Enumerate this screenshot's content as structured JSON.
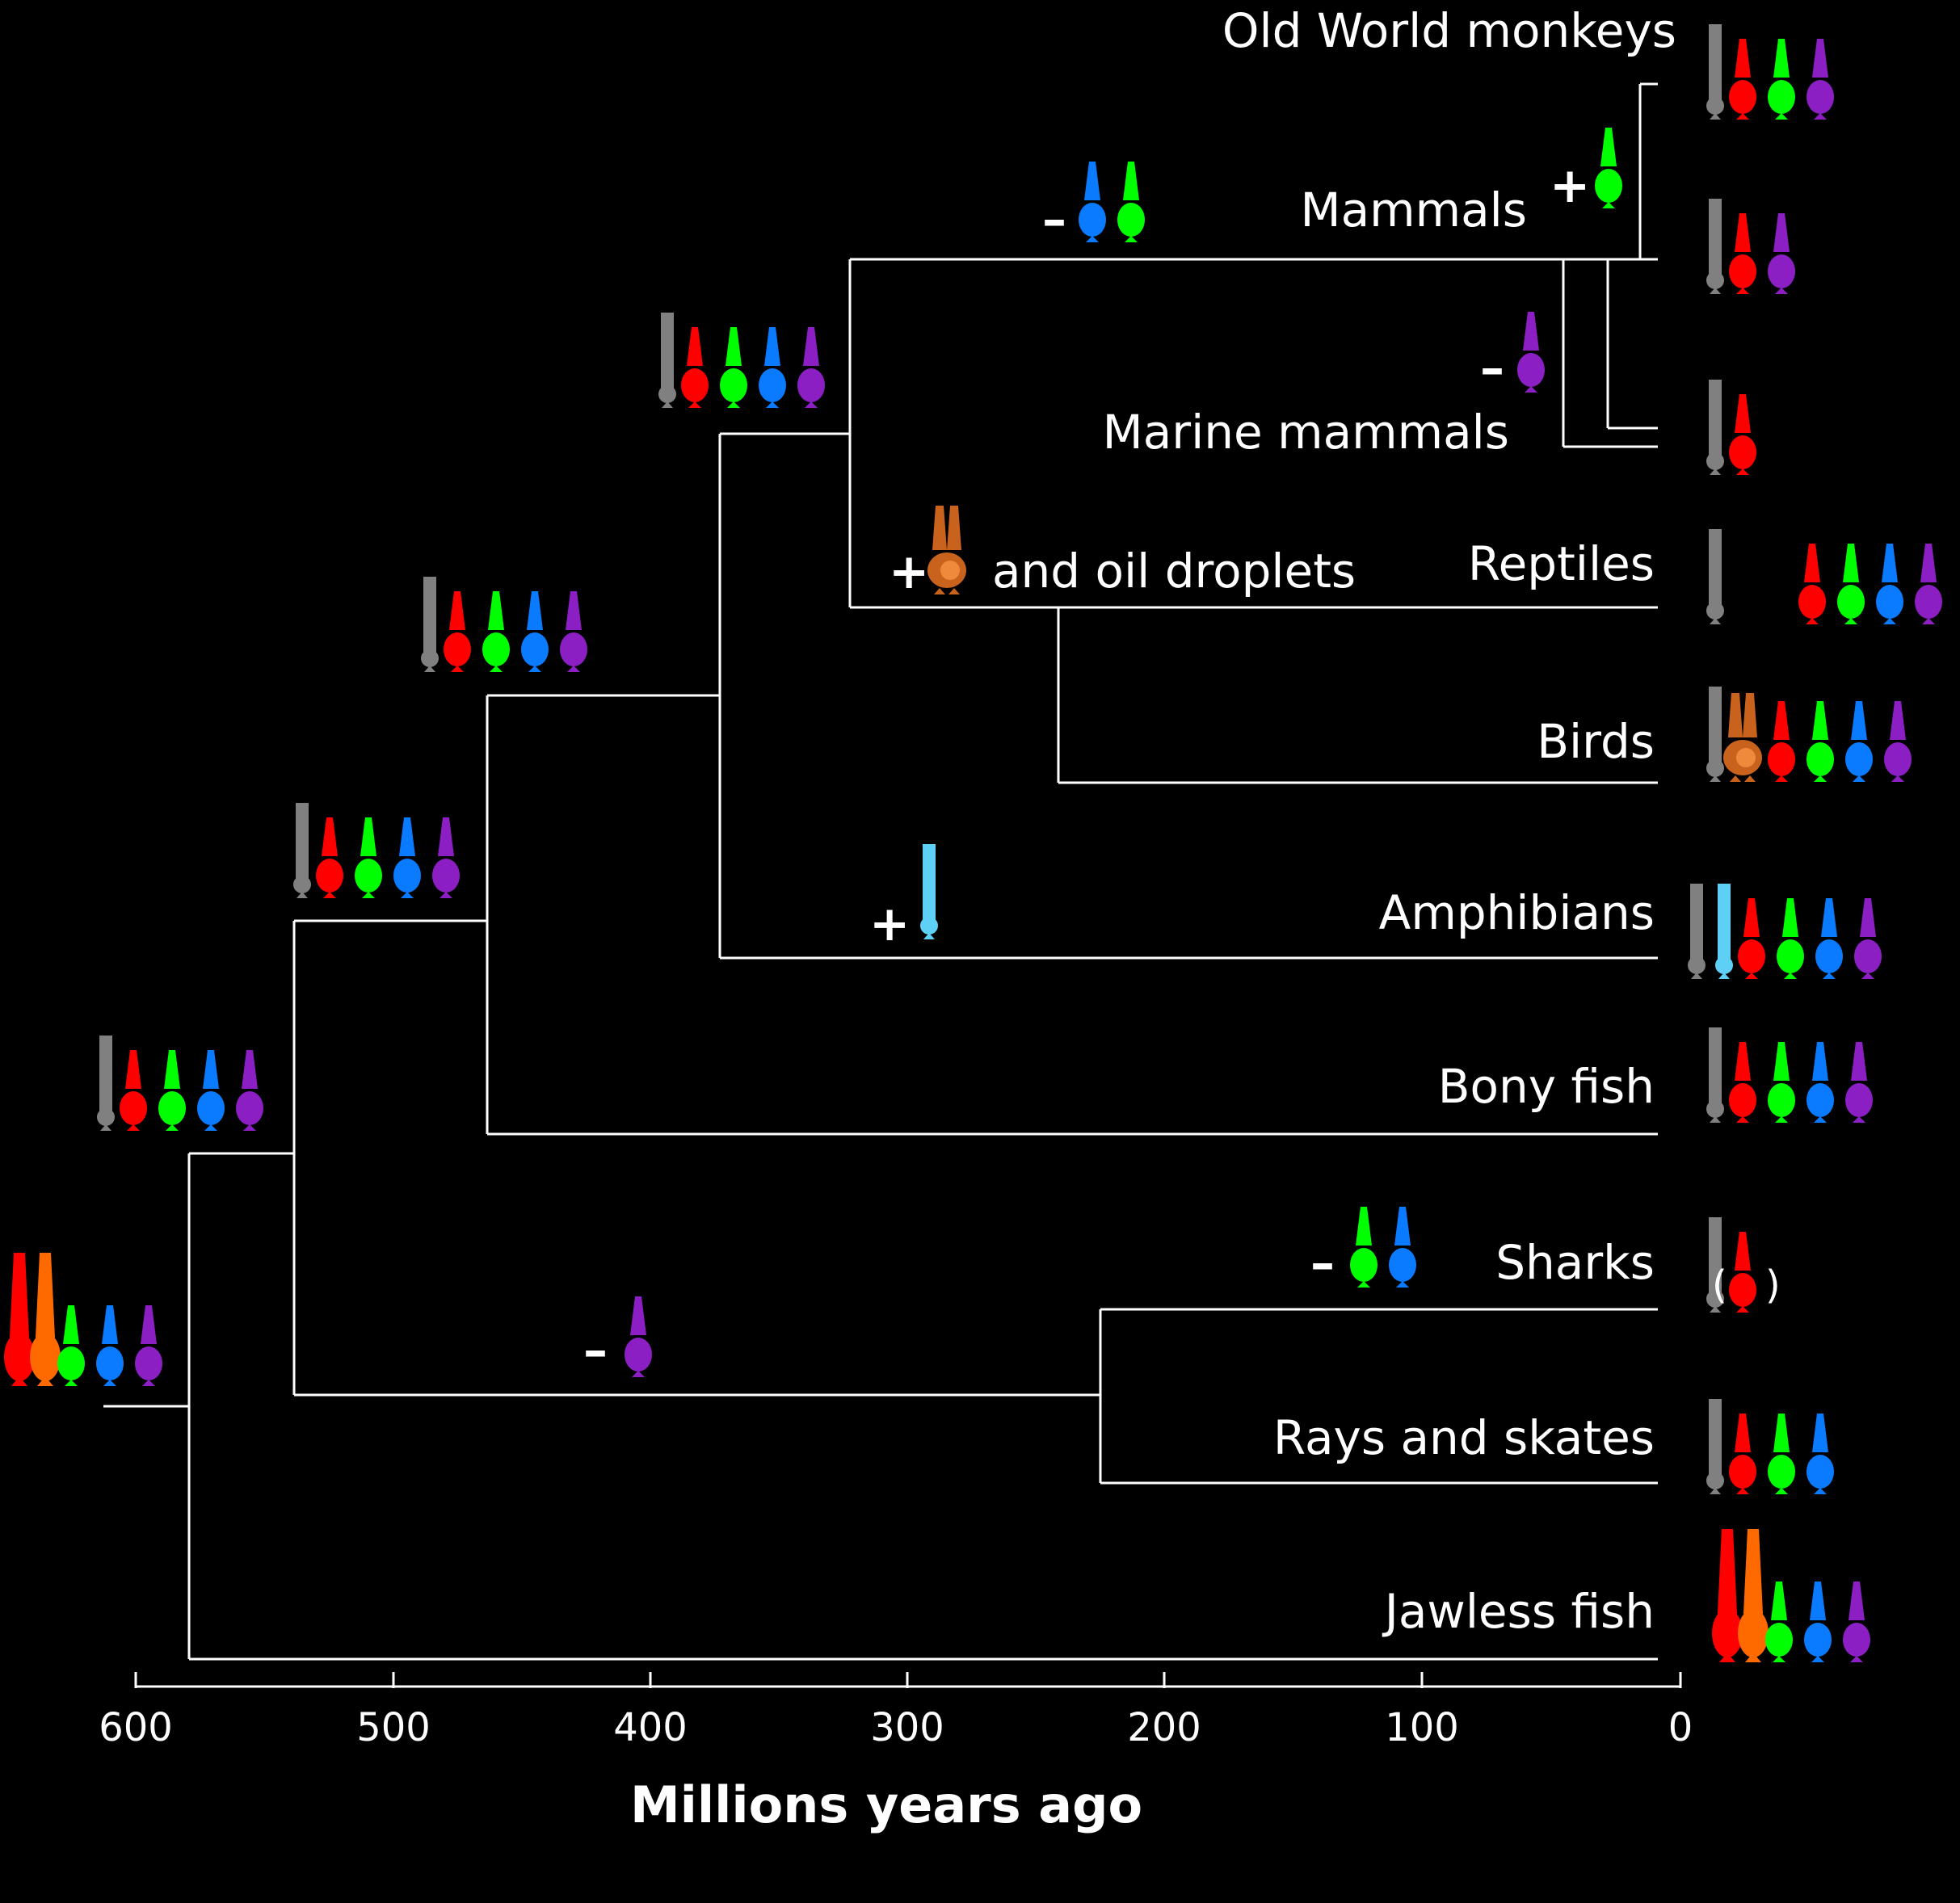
{
  "taxa": [
    {
      "name": "Old World monkeys",
      "photoreceptors": [
        "rod",
        "red",
        "green",
        "violet"
      ]
    },
    {
      "name": "Mammals",
      "photoreceptors": [
        "rod",
        "red",
        "violet"
      ]
    },
    {
      "name": "Marine mammals",
      "photoreceptors": [
        "rod",
        "red"
      ]
    },
    {
      "name": "Reptiles",
      "photoreceptors": [
        "rod",
        "gap",
        "red",
        "green",
        "blue",
        "violet"
      ]
    },
    {
      "name": "Birds",
      "photoreceptors": [
        "rod",
        "double",
        "red",
        "green",
        "blue",
        "violet"
      ]
    },
    {
      "name": "Amphibians",
      "photoreceptors": [
        "rod",
        "cyan-rod",
        "red",
        "green",
        "blue",
        "violet"
      ]
    },
    {
      "name": "Bony fish",
      "photoreceptors": [
        "rod",
        "red",
        "green",
        "blue",
        "violet"
      ]
    },
    {
      "name": "Sharks",
      "photoreceptors": [
        "rod",
        "red-in-parentheses"
      ]
    },
    {
      "name": "Rays and skates",
      "photoreceptors": [
        "rod",
        "red",
        "green",
        "blue"
      ]
    },
    {
      "name": "Jawless fish",
      "photoreceptors": [
        "big-red",
        "big-orange",
        "green",
        "blue",
        "violet"
      ]
    }
  ],
  "nodes": [
    {
      "id": "root",
      "photoreceptors": [
        "big-red",
        "big-orange",
        "green",
        "blue",
        "violet"
      ]
    },
    {
      "id": "gnathostomes",
      "photoreceptors": [
        "rod",
        "red",
        "green",
        "blue",
        "violet"
      ]
    },
    {
      "id": "osteichthyes",
      "photoreceptors": [
        "rod",
        "red",
        "green",
        "blue",
        "violet"
      ]
    },
    {
      "id": "tetrapods",
      "photoreceptors": [
        "rod",
        "red",
        "green",
        "blue",
        "violet"
      ]
    },
    {
      "id": "amniotes",
      "photoreceptors": [
        "rod",
        "red",
        "green",
        "blue",
        "violet"
      ]
    }
  ],
  "events": [
    {
      "sign": "–",
      "photoreceptors": [
        "blue",
        "green"
      ],
      "text": ""
    },
    {
      "sign": "+",
      "photoreceptors": [
        "green"
      ],
      "text": ""
    },
    {
      "sign": "–",
      "photoreceptors": [
        "violet"
      ],
      "text": ""
    },
    {
      "sign": "+",
      "photoreceptors": [
        "double"
      ],
      "text": "and oil droplets"
    },
    {
      "sign": "+",
      "photoreceptors": [
        "cyan-rod"
      ],
      "text": ""
    },
    {
      "sign": "–",
      "photoreceptors": [
        "green",
        "blue"
      ],
      "text": ""
    },
    {
      "sign": "–",
      "photoreceptors": [
        "violet"
      ],
      "text": ""
    }
  ],
  "axis": {
    "title": "Millions years ago",
    "ticks": [
      "600",
      "500",
      "400",
      "300",
      "200",
      "100",
      "0"
    ]
  },
  "colors": {
    "background": "#000000",
    "lines": "#ffffff",
    "rod": "#808080",
    "red": "#ff0000",
    "green": "#00ff00",
    "blue": "#0a7bff",
    "violet": "#8b1fc4",
    "cyan": "#5fd0f5",
    "orange": "#ff6a00",
    "brown": "#c8621c"
  }
}
